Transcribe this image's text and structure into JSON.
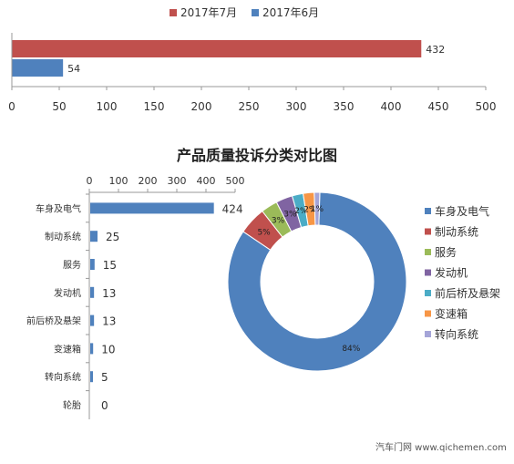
{
  "chart_data": [
    {
      "type": "bar",
      "orientation": "horizontal",
      "categories": [
        ""
      ],
      "series": [
        {
          "name": "2017年7月",
          "values": [
            432
          ],
          "color": "#c0504d"
        },
        {
          "name": "2017年6月",
          "values": [
            54
          ],
          "color": "#4f81bd"
        }
      ],
      "data_labels": [
        "432",
        "54"
      ],
      "xlim": [
        0,
        500
      ],
      "xticks": [
        0,
        50,
        100,
        150,
        200,
        250,
        300,
        350,
        400,
        450,
        500
      ],
      "legend": "top-center",
      "grid": false
    },
    {
      "type": "bar",
      "orientation": "horizontal",
      "title": "产品质量投诉分类对比图",
      "categories": [
        "车身及电气",
        "制动系统",
        "服务",
        "发动机",
        "前后桥及悬架",
        "变速箱",
        "转向系统",
        "轮胎"
      ],
      "values": [
        424,
        25,
        15,
        13,
        13,
        10,
        5,
        0
      ],
      "xlim": [
        0,
        500
      ],
      "xticks": [
        0,
        100,
        200,
        300,
        400,
        500
      ],
      "axis_position": "top",
      "color": "#4f81bd",
      "grid": false
    },
    {
      "type": "pie",
      "style": "doughnut",
      "categories": [
        "车身及电气",
        "制动系统",
        "服务",
        "发动机",
        "前后桥及悬架",
        "变速箱",
        "转向系统"
      ],
      "values": [
        84,
        5,
        3,
        3,
        2,
        2,
        1
      ],
      "labels": [
        "84%",
        "5%",
        "3%",
        "3%",
        "2%",
        "2%",
        "1%"
      ],
      "colors": [
        "#4f81bd",
        "#c0504d",
        "#9bbb59",
        "#8064a2",
        "#4bacc6",
        "#f79646",
        "#a5a5d8"
      ],
      "legend": "right"
    }
  ],
  "watermark": "汽车门网 www.qichemen.com"
}
